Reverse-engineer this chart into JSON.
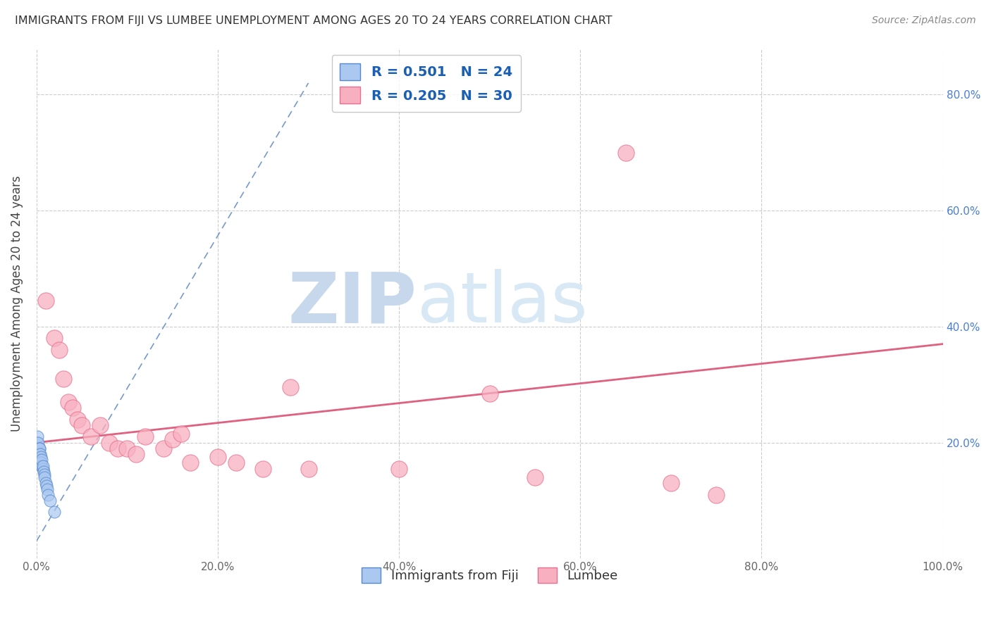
{
  "title": "IMMIGRANTS FROM FIJI VS LUMBEE UNEMPLOYMENT AMONG AGES 20 TO 24 YEARS CORRELATION CHART",
  "source": "Source: ZipAtlas.com",
  "ylabel": "Unemployment Among Ages 20 to 24 years",
  "xlim": [
    0.0,
    1.0
  ],
  "ylim": [
    0.0,
    0.88
  ],
  "xticks": [
    0.0,
    0.2,
    0.4,
    0.6,
    0.8,
    1.0
  ],
  "yticks": [
    0.2,
    0.4,
    0.6,
    0.8
  ],
  "xticklabels": [
    "0.0%",
    "20.0%",
    "40.0%",
    "60.0%",
    "80.0%",
    "100.0%"
  ],
  "right_yticklabels": [
    "20.0%",
    "40.0%",
    "60.0%",
    "80.0%"
  ],
  "right_yticks": [
    0.2,
    0.4,
    0.6,
    0.8
  ],
  "fiji_R": 0.501,
  "fiji_N": 24,
  "lumbee_R": 0.205,
  "lumbee_N": 30,
  "fiji_color": "#aac8f0",
  "fiji_edge_color": "#5588cc",
  "lumbee_color": "#f8b0c0",
  "lumbee_edge_color": "#e87090",
  "fiji_trend_color": "#7799cc",
  "lumbee_trend_color": "#e06080",
  "background_color": "#ffffff",
  "grid_color": "#cccccc",
  "watermark_zip_color": "#c8d8ec",
  "watermark_atlas_color": "#c8d8ec",
  "title_color": "#333333",
  "fiji_x": [
    0.001,
    0.001,
    0.002,
    0.002,
    0.003,
    0.003,
    0.003,
    0.004,
    0.004,
    0.005,
    0.005,
    0.006,
    0.006,
    0.007,
    0.007,
    0.008,
    0.009,
    0.009,
    0.01,
    0.011,
    0.012,
    0.013,
    0.015,
    0.02
  ],
  "fiji_y": [
    0.2,
    0.21,
    0.19,
    0.2,
    0.19,
    0.18,
    0.19,
    0.18,
    0.17,
    0.175,
    0.165,
    0.16,
    0.17,
    0.155,
    0.16,
    0.15,
    0.145,
    0.14,
    0.13,
    0.125,
    0.12,
    0.11,
    0.1,
    0.08
  ],
  "lumbee_x": [
    0.01,
    0.02,
    0.025,
    0.03,
    0.035,
    0.04,
    0.045,
    0.05,
    0.06,
    0.07,
    0.08,
    0.09,
    0.1,
    0.11,
    0.12,
    0.14,
    0.15,
    0.16,
    0.17,
    0.2,
    0.22,
    0.25,
    0.28,
    0.3,
    0.4,
    0.5,
    0.55,
    0.65,
    0.7,
    0.75
  ],
  "lumbee_y": [
    0.445,
    0.38,
    0.36,
    0.31,
    0.27,
    0.26,
    0.24,
    0.23,
    0.21,
    0.23,
    0.2,
    0.19,
    0.19,
    0.18,
    0.21,
    0.19,
    0.205,
    0.215,
    0.165,
    0.175,
    0.165,
    0.155,
    0.295,
    0.155,
    0.155,
    0.285,
    0.14,
    0.7,
    0.13,
    0.11
  ],
  "fiji_trend_x": [
    0.0,
    0.3
  ],
  "fiji_trend_y": [
    0.03,
    0.82
  ],
  "lumbee_trend_x": [
    0.0,
    1.0
  ],
  "lumbee_trend_y": [
    0.2,
    0.37
  ]
}
